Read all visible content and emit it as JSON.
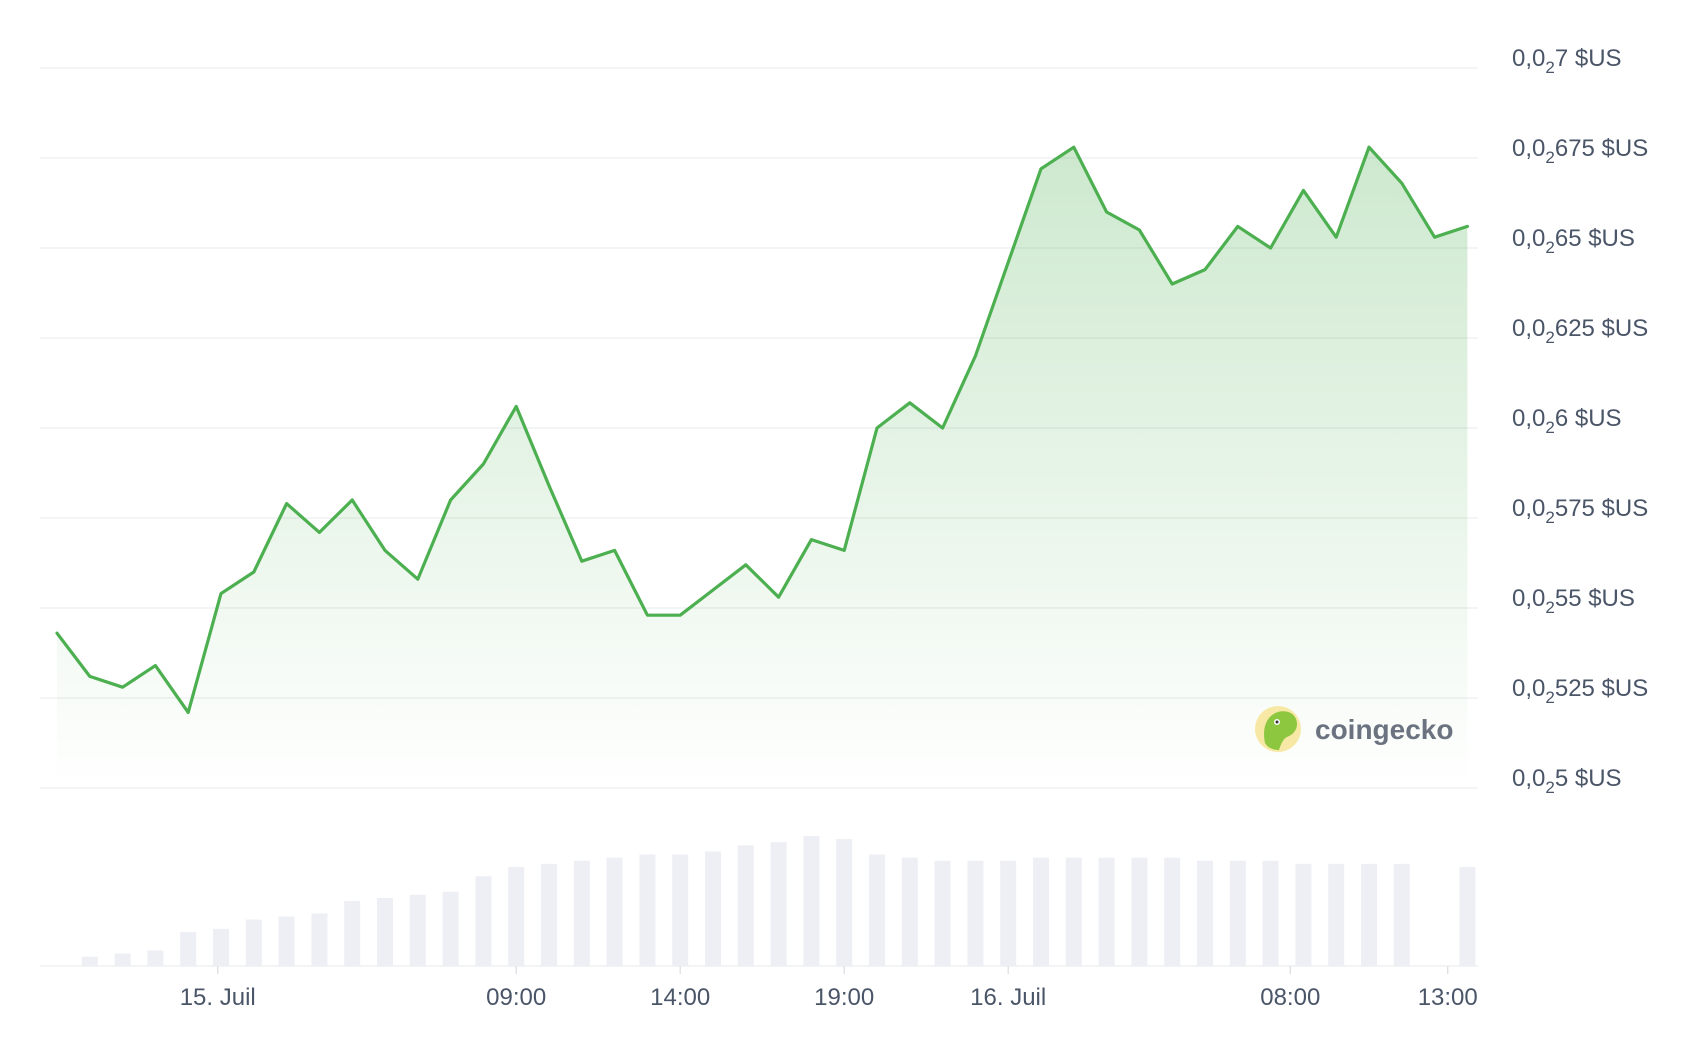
{
  "chart_data": {
    "type": "line",
    "line_color": "#4caf50",
    "area_color": "#4caf50",
    "volume_color": "#eeeff4",
    "grid": true,
    "ylim": [
      0.0248,
      0.027
    ],
    "y_ticks": [
      {
        "value": 0.027,
        "prefix": "0,0",
        "sub": "2",
        "suffix": "7 $US"
      },
      {
        "value": 0.02675,
        "prefix": "0,0",
        "sub": "2",
        "suffix": "675 $US"
      },
      {
        "value": 0.0265,
        "prefix": "0,0",
        "sub": "2",
        "suffix": "65 $US"
      },
      {
        "value": 0.02625,
        "prefix": "0,0",
        "sub": "2",
        "suffix": "625 $US"
      },
      {
        "value": 0.026,
        "prefix": "0,0",
        "sub": "2",
        "suffix": "6 $US"
      },
      {
        "value": 0.02575,
        "prefix": "0,0",
        "sub": "2",
        "suffix": "575 $US"
      },
      {
        "value": 0.0255,
        "prefix": "0,0",
        "sub": "2",
        "suffix": "55 $US"
      },
      {
        "value": 0.02525,
        "prefix": "0,0",
        "sub": "2",
        "suffix": "525 $US"
      },
      {
        "value": 0.025,
        "prefix": "0,0",
        "sub": "2",
        "suffix": "5 $US"
      }
    ],
    "x_ticks": [
      {
        "label": "15. Juil",
        "t": 4.9
      },
      {
        "label": "09:00",
        "t": 14.0
      },
      {
        "label": "14:00",
        "t": 19.0
      },
      {
        "label": "19:00",
        "t": 24.0
      },
      {
        "label": "16. Juil",
        "t": 29.0
      },
      {
        "label": "08:00",
        "t": 37.6
      },
      {
        "label": "13:00",
        "t": 42.4
      }
    ],
    "x_range": [
      0,
      43.5
    ],
    "series": [
      {
        "values": [
          [
            0.0,
            0.02543
          ],
          [
            1.0,
            0.02531
          ],
          [
            2.0,
            0.02528
          ],
          [
            3.0,
            0.02534
          ],
          [
            4.0,
            0.02521
          ],
          [
            5.0,
            0.02554
          ],
          [
            6.0,
            0.0256
          ],
          [
            7.0,
            0.02579
          ],
          [
            8.0,
            0.02571
          ],
          [
            9.0,
            0.0258
          ],
          [
            10.0,
            0.02566
          ],
          [
            11.0,
            0.02558
          ],
          [
            12.0,
            0.0258
          ],
          [
            13.0,
            0.0259
          ],
          [
            14.0,
            0.02606
          ],
          [
            15.0,
            0.02584
          ],
          [
            16.0,
            0.02563
          ],
          [
            17.0,
            0.02566
          ],
          [
            18.0,
            0.02548
          ],
          [
            19.0,
            0.02548
          ],
          [
            20.0,
            0.02555
          ],
          [
            21.0,
            0.02562
          ],
          [
            22.0,
            0.02553
          ],
          [
            23.0,
            0.02569
          ],
          [
            24.0,
            0.02566
          ],
          [
            25.0,
            0.026
          ],
          [
            26.0,
            0.02607
          ],
          [
            27.0,
            0.026
          ],
          [
            28.0,
            0.0262
          ],
          [
            29.0,
            0.02646
          ],
          [
            30.0,
            0.02672
          ],
          [
            31.0,
            0.02678
          ],
          [
            32.0,
            0.0266
          ],
          [
            33.0,
            0.02655
          ],
          [
            34.0,
            0.0264
          ],
          [
            35.0,
            0.02644
          ],
          [
            36.0,
            0.02656
          ],
          [
            37.0,
            0.0265
          ],
          [
            38.0,
            0.02666
          ],
          [
            39.0,
            0.02653
          ],
          [
            40.0,
            0.02678
          ],
          [
            41.0,
            0.02668
          ],
          [
            42.0,
            0.02653
          ],
          [
            43.0,
            0.02656
          ]
        ]
      }
    ],
    "volume": [
      [
        1.0,
        3
      ],
      [
        2.0,
        4
      ],
      [
        3.0,
        5
      ],
      [
        4.0,
        11
      ],
      [
        5.0,
        12
      ],
      [
        6.0,
        15
      ],
      [
        7.0,
        16
      ],
      [
        8.0,
        17
      ],
      [
        9.0,
        21
      ],
      [
        10.0,
        22
      ],
      [
        11.0,
        23
      ],
      [
        12.0,
        24
      ],
      [
        13.0,
        29
      ],
      [
        14.0,
        32
      ],
      [
        15.0,
        33
      ],
      [
        16.0,
        34
      ],
      [
        17.0,
        35
      ],
      [
        18.0,
        36
      ],
      [
        19.0,
        36
      ],
      [
        20.0,
        37
      ],
      [
        21.0,
        39
      ],
      [
        22.0,
        40
      ],
      [
        23.0,
        42
      ],
      [
        24.0,
        41
      ],
      [
        25.0,
        36
      ],
      [
        26.0,
        35
      ],
      [
        27.0,
        34
      ],
      [
        28.0,
        34
      ],
      [
        29.0,
        34
      ],
      [
        30.0,
        35
      ],
      [
        31.0,
        35
      ],
      [
        32.0,
        35
      ],
      [
        33.0,
        35
      ],
      [
        34.0,
        35
      ],
      [
        35.0,
        34
      ],
      [
        36.0,
        34
      ],
      [
        37.0,
        34
      ],
      [
        38.0,
        33
      ],
      [
        39.0,
        33
      ],
      [
        40.0,
        33
      ],
      [
        41.0,
        33
      ],
      [
        43.0,
        32
      ]
    ]
  },
  "watermark": {
    "text": "coingecko",
    "icon": "gecko-icon"
  }
}
